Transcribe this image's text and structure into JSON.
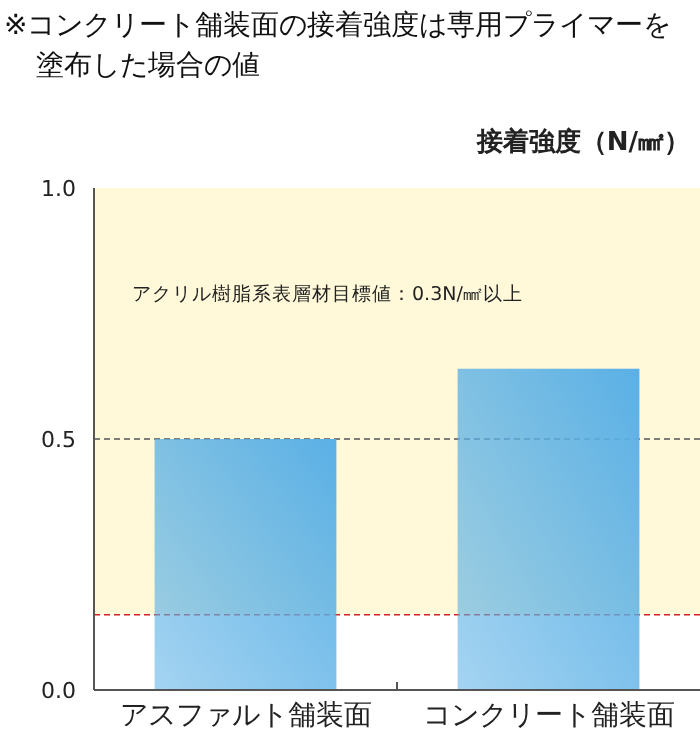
{
  "chart_data": {
    "type": "bar",
    "title": "※コンクリート舗装面の接着強度は専用プライマーを塗布した場合の値",
    "ylabel": "接着強度（N/㎟）",
    "categories": [
      "アスファルト舗装面",
      "コンクリート舗装面"
    ],
    "values": [
      0.5,
      0.64
    ],
    "color": "#5ab0e6",
    "ylim": [
      0,
      1
    ],
    "yticks": [
      {
        "value": 0,
        "label": "0.0"
      },
      {
        "value": 0.5,
        "label": "0.5"
      },
      {
        "value": 1,
        "label": "1.0"
      }
    ],
    "bands": [
      {
        "axis": "y",
        "from": 0.15,
        "to": 1,
        "color": "#fff9d9"
      }
    ],
    "ref_lines": [
      {
        "axis": "y",
        "value": 0.5,
        "color": "#555555",
        "line_style": "dashed"
      },
      {
        "axis": "y",
        "value": 0.15,
        "color": "#d42020",
        "line_style": "dashed"
      }
    ],
    "annotations": [
      "アクリル樹脂系表層材目標値：0.3N/㎟以上"
    ]
  }
}
